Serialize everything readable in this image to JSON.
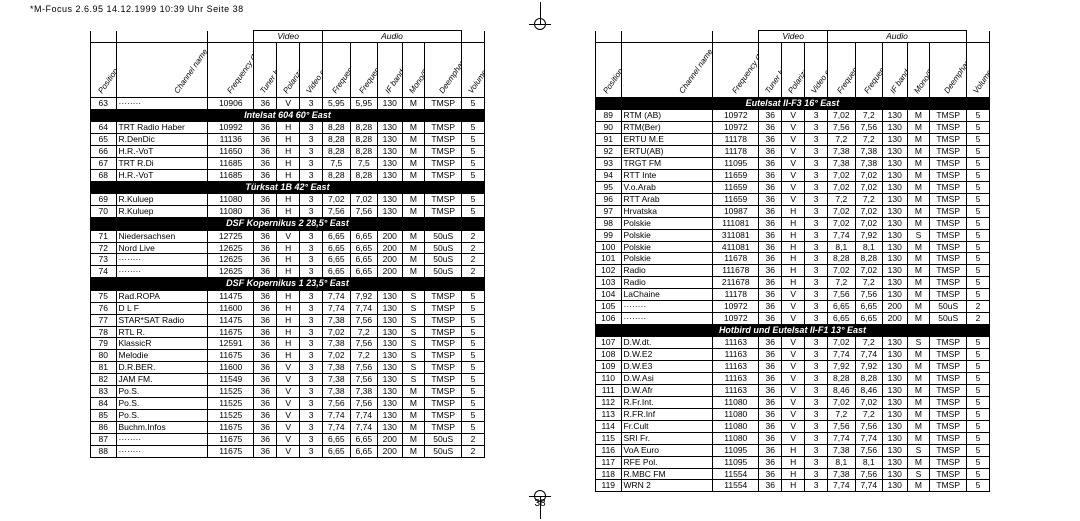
{
  "meta": {
    "headerLine": "*M-Focus 2.6.95   14.12.1999 10:39 Uhr   Seite 38",
    "pageNum": "38"
  },
  "headers": {
    "groupVideo": "Video",
    "groupAudio": "Audio",
    "cols": [
      "Position",
      "Channel name",
      "Frequency (MHz)",
      "Tuner band-width (MHz)",
      "Polarization",
      "Video control",
      "Frequency left (MHz)",
      "Frequency right (MHz)",
      "IF band-width(kHz)",
      "Mono/Stereo",
      "Deemphasis",
      "Volume"
    ]
  },
  "left": [
    {
      "type": "row",
      "c": [
        "63",
        "········",
        "10906",
        "36",
        "V",
        "3",
        "5,95",
        "5,95",
        "130",
        "M",
        "TMSP",
        "5"
      ]
    },
    {
      "type": "section",
      "t": "Intelsat 604  60° East"
    },
    {
      "type": "row",
      "c": [
        "64",
        "TRT Radio Haber",
        "10992",
        "36",
        "H",
        "3",
        "8,28",
        "8,28",
        "130",
        "M",
        "TMSP",
        "5"
      ]
    },
    {
      "type": "row",
      "c": [
        "65",
        "R.DenDic",
        "11136",
        "36",
        "H",
        "3",
        "8,28",
        "8,28",
        "130",
        "M",
        "TMSP",
        "5"
      ]
    },
    {
      "type": "row",
      "c": [
        "66",
        "H.R.-VoT",
        "11650",
        "36",
        "H",
        "3",
        "8,28",
        "8,28",
        "130",
        "M",
        "TMSP",
        "5"
      ]
    },
    {
      "type": "row",
      "c": [
        "67",
        "TRT R.Di",
        "11685",
        "36",
        "H",
        "3",
        "7,5",
        "7,5",
        "130",
        "M",
        "TMSP",
        "5"
      ]
    },
    {
      "type": "row",
      "c": [
        "68",
        "H.R.-VoT",
        "11685",
        "36",
        "H",
        "3",
        "8,28",
        "8,28",
        "130",
        "M",
        "TMSP",
        "5"
      ]
    },
    {
      "type": "section",
      "t": "Türksat 1B  42° East"
    },
    {
      "type": "row",
      "c": [
        "69",
        "R.Kuluep",
        "11080",
        "36",
        "H",
        "3",
        "7,02",
        "7,02",
        "130",
        "M",
        "TMSP",
        "5"
      ]
    },
    {
      "type": "row",
      "c": [
        "70",
        "R.Kuluep",
        "11080",
        "36",
        "H",
        "3",
        "7,56",
        "7,56",
        "130",
        "M",
        "TMSP",
        "5"
      ]
    },
    {
      "type": "section",
      "t": "DSF Kopernikus 2  28,5° East"
    },
    {
      "type": "row",
      "c": [
        "71",
        "Niedersachsen",
        "12725",
        "36",
        "V",
        "3",
        "6,65",
        "6,65",
        "200",
        "M",
        "50uS",
        "2"
      ]
    },
    {
      "type": "row",
      "c": [
        "72",
        "Nord Live",
        "12625",
        "36",
        "H",
        "3",
        "6,65",
        "6,65",
        "200",
        "M",
        "50uS",
        "2"
      ]
    },
    {
      "type": "row",
      "c": [
        "73",
        "········",
        "12625",
        "36",
        "H",
        "3",
        "6,65",
        "6,65",
        "200",
        "M",
        "50uS",
        "2"
      ]
    },
    {
      "type": "row",
      "c": [
        "74",
        "········",
        "12625",
        "36",
        "H",
        "3",
        "6,65",
        "6,65",
        "200",
        "M",
        "50uS",
        "2"
      ]
    },
    {
      "type": "section",
      "t": "DSF Kopernikus 1  23,5° East"
    },
    {
      "type": "row",
      "c": [
        "75",
        "Rad.ROPA",
        "11475",
        "36",
        "H",
        "3",
        "7,74",
        "7,92",
        "130",
        "S",
        "TMSP",
        "5"
      ]
    },
    {
      "type": "row",
      "c": [
        "76",
        "D L F",
        "11600",
        "36",
        "H",
        "3",
        "7,74",
        "7,74",
        "130",
        "S",
        "TMSP",
        "5"
      ]
    },
    {
      "type": "row",
      "c": [
        "77",
        "STAR*SAT Radio",
        "11475",
        "36",
        "H",
        "3",
        "7,38",
        "7,56",
        "130",
        "S",
        "TMSP",
        "5"
      ]
    },
    {
      "type": "row",
      "c": [
        "78",
        "RTL R.",
        "11675",
        "36",
        "H",
        "3",
        "7,02",
        "7,2",
        "130",
        "S",
        "TMSP",
        "5"
      ]
    },
    {
      "type": "row",
      "c": [
        "79",
        "KlassicR",
        "12591",
        "36",
        "H",
        "3",
        "7,38",
        "7,56",
        "130",
        "S",
        "TMSP",
        "5"
      ]
    },
    {
      "type": "row",
      "c": [
        "80",
        "Melodie",
        "11675",
        "36",
        "H",
        "3",
        "7,02",
        "7,2",
        "130",
        "S",
        "TMSP",
        "5"
      ]
    },
    {
      "type": "row",
      "c": [
        "81",
        "D.R.BER.",
        "11600",
        "36",
        "V",
        "3",
        "7,38",
        "7,56",
        "130",
        "S",
        "TMSP",
        "5"
      ]
    },
    {
      "type": "row",
      "c": [
        "82",
        "JAM FM.",
        "11549",
        "36",
        "V",
        "3",
        "7,38",
        "7,56",
        "130",
        "S",
        "TMSP",
        "5"
      ]
    },
    {
      "type": "row",
      "c": [
        "83",
        "Po.S.",
        "11525",
        "36",
        "V",
        "3",
        "7,38",
        "7,38",
        "130",
        "M",
        "TMSP",
        "5"
      ]
    },
    {
      "type": "row",
      "c": [
        "84",
        "Po.S.",
        "11525",
        "36",
        "V",
        "3",
        "7,56",
        "7,56",
        "130",
        "M",
        "TMSP",
        "5"
      ]
    },
    {
      "type": "row",
      "c": [
        "85",
        "Po.S.",
        "11525",
        "36",
        "V",
        "3",
        "7,74",
        "7,74",
        "130",
        "M",
        "TMSP",
        "5"
      ]
    },
    {
      "type": "row",
      "c": [
        "86",
        "Buchm.Infos",
        "11675",
        "36",
        "V",
        "3",
        "7,74",
        "7,74",
        "130",
        "M",
        "TMSP",
        "5"
      ]
    },
    {
      "type": "row",
      "c": [
        "87",
        "········",
        "11675",
        "36",
        "V",
        "3",
        "6,65",
        "6,65",
        "200",
        "M",
        "50uS",
        "2"
      ]
    },
    {
      "type": "row",
      "c": [
        "88",
        "········",
        "11675",
        "36",
        "V",
        "3",
        "6,65",
        "6,65",
        "200",
        "M",
        "50uS",
        "2"
      ]
    }
  ],
  "right": [
    {
      "type": "section",
      "t": "Eutelsat II-F3 16° East"
    },
    {
      "type": "row",
      "c": [
        "89",
        "RTM (AB)",
        "10972",
        "36",
        "V",
        "3",
        "7,02",
        "7,2",
        "130",
        "M",
        "TMSP",
        "5"
      ]
    },
    {
      "type": "row",
      "c": [
        "90",
        "RTM(Ber)",
        "10972",
        "36",
        "V",
        "3",
        "7,56",
        "7,56",
        "130",
        "M",
        "TMSP",
        "5"
      ]
    },
    {
      "type": "row",
      "c": [
        "91",
        "ERTU M.E",
        "11178",
        "36",
        "V",
        "3",
        "7,2",
        "7,2",
        "130",
        "M",
        "TMSP",
        "5"
      ]
    },
    {
      "type": "row",
      "c": [
        "92",
        "ERTU(AB)",
        "11178",
        "36",
        "V",
        "3",
        "7,38",
        "7,38",
        "130",
        "M",
        "TMSP",
        "5"
      ]
    },
    {
      "type": "row",
      "c": [
        "93",
        "TRGT FM",
        "11095",
        "36",
        "V",
        "3",
        "7,38",
        "7,38",
        "130",
        "M",
        "TMSP",
        "5"
      ]
    },
    {
      "type": "row",
      "c": [
        "94",
        "RTT Inte",
        "11659",
        "36",
        "V",
        "3",
        "7,02",
        "7,02",
        "130",
        "M",
        "TMSP",
        "5"
      ]
    },
    {
      "type": "row",
      "c": [
        "95",
        "V.o.Arab",
        "11659",
        "36",
        "V",
        "3",
        "7,02",
        "7,02",
        "130",
        "M",
        "TMSP",
        "5"
      ]
    },
    {
      "type": "row",
      "c": [
        "96",
        "RTT Arab",
        "11659",
        "36",
        "V",
        "3",
        "7,2",
        "7,2",
        "130",
        "M",
        "TMSP",
        "5"
      ]
    },
    {
      "type": "row",
      "c": [
        "97",
        "Hrvatska",
        "10987",
        "36",
        "H",
        "3",
        "7,02",
        "7,02",
        "130",
        "M",
        "TMSP",
        "5"
      ]
    },
    {
      "type": "row",
      "c": [
        "98",
        "Polskie",
        "111081",
        "36",
        "H",
        "3",
        "7,02",
        "7,02",
        "130",
        "M",
        "TMSP",
        "5"
      ]
    },
    {
      "type": "row",
      "c": [
        "99",
        "Polskie",
        "311081",
        "36",
        "H",
        "3",
        "7,74",
        "7,92",
        "130",
        "S",
        "TMSP",
        "5"
      ]
    },
    {
      "type": "row",
      "c": [
        "100",
        "Polskie",
        "411081",
        "36",
        "H",
        "3",
        "8,1",
        "8,1",
        "130",
        "M",
        "TMSP",
        "5"
      ]
    },
    {
      "type": "row",
      "c": [
        "101",
        "Polskie",
        "11678",
        "36",
        "H",
        "3",
        "8,28",
        "8,28",
        "130",
        "M",
        "TMSP",
        "5"
      ]
    },
    {
      "type": "row",
      "c": [
        "102",
        "Radio",
        "111678",
        "36",
        "H",
        "3",
        "7,02",
        "7,02",
        "130",
        "M",
        "TMSP",
        "5"
      ]
    },
    {
      "type": "row",
      "c": [
        "103",
        "Radio",
        "211678",
        "36",
        "H",
        "3",
        "7,2",
        "7,2",
        "130",
        "M",
        "TMSP",
        "5"
      ]
    },
    {
      "type": "row",
      "c": [
        "104",
        "LaChaine",
        "11178",
        "36",
        "V",
        "3",
        "7,56",
        "7,56",
        "130",
        "M",
        "TMSP",
        "5"
      ]
    },
    {
      "type": "row",
      "c": [
        "105",
        "········",
        "10972",
        "36",
        "V",
        "3",
        "6,65",
        "6,65",
        "200",
        "M",
        "50uS",
        "2"
      ]
    },
    {
      "type": "row",
      "c": [
        "106",
        "········",
        "10972",
        "36",
        "V",
        "3",
        "6,65",
        "6,65",
        "200",
        "M",
        "50uS",
        "2"
      ]
    },
    {
      "type": "section",
      "t": "Hotbird und Eutelsat II-F1 13° East"
    },
    {
      "type": "row",
      "c": [
        "107",
        "D.W.dt.",
        "11163",
        "36",
        "V",
        "3",
        "7,02",
        "7,2",
        "130",
        "S",
        "TMSP",
        "5"
      ]
    },
    {
      "type": "row",
      "c": [
        "108",
        "D.W.E2",
        "11163",
        "36",
        "V",
        "3",
        "7,74",
        "7,74",
        "130",
        "M",
        "TMSP",
        "5"
      ]
    },
    {
      "type": "row",
      "c": [
        "109",
        "D.W.E3",
        "11163",
        "36",
        "V",
        "3",
        "7,92",
        "7,92",
        "130",
        "M",
        "TMSP",
        "5"
      ]
    },
    {
      "type": "row",
      "c": [
        "110",
        "D.W.Asi",
        "11163",
        "36",
        "V",
        "3",
        "8,28",
        "8,28",
        "130",
        "M",
        "TMSP",
        "5"
      ]
    },
    {
      "type": "row",
      "c": [
        "111",
        "D.W.Afr",
        "11163",
        "36",
        "V",
        "3",
        "8,46",
        "8,46",
        "130",
        "M",
        "TMSP",
        "5"
      ]
    },
    {
      "type": "row",
      "c": [
        "112",
        "R.Fr.Int.",
        "11080",
        "36",
        "V",
        "3",
        "7,02",
        "7,02",
        "130",
        "M",
        "TMSP",
        "5"
      ]
    },
    {
      "type": "row",
      "c": [
        "113",
        "R.FR.Inf",
        "11080",
        "36",
        "V",
        "3",
        "7,2",
        "7,2",
        "130",
        "M",
        "TMSP",
        "5"
      ]
    },
    {
      "type": "row",
      "c": [
        "114",
        "Fr.Cult",
        "11080",
        "36",
        "V",
        "3",
        "7,56",
        "7,56",
        "130",
        "M",
        "TMSP",
        "5"
      ]
    },
    {
      "type": "row",
      "c": [
        "115",
        "SRI Fr.",
        "11080",
        "36",
        "V",
        "3",
        "7,74",
        "7,74",
        "130",
        "M",
        "TMSP",
        "5"
      ]
    },
    {
      "type": "row",
      "c": [
        "116",
        "VoA Euro",
        "11095",
        "36",
        "H",
        "3",
        "7,38",
        "7,56",
        "130",
        "S",
        "TMSP",
        "5"
      ]
    },
    {
      "type": "row",
      "c": [
        "117",
        "RFE Pol.",
        "11095",
        "36",
        "H",
        "3",
        "8,1",
        "8,1",
        "130",
        "M",
        "TMSP",
        "5"
      ]
    },
    {
      "type": "row",
      "c": [
        "118",
        "R.MBC FM",
        "11554",
        "36",
        "H",
        "3",
        "7,38",
        "7,56",
        "130",
        "S",
        "TMSP",
        "5"
      ]
    },
    {
      "type": "row",
      "c": [
        "119",
        "WRN 2",
        "11554",
        "36",
        "H",
        "3",
        "7,74",
        "7,74",
        "130",
        "M",
        "TMSP",
        "5"
      ]
    }
  ]
}
